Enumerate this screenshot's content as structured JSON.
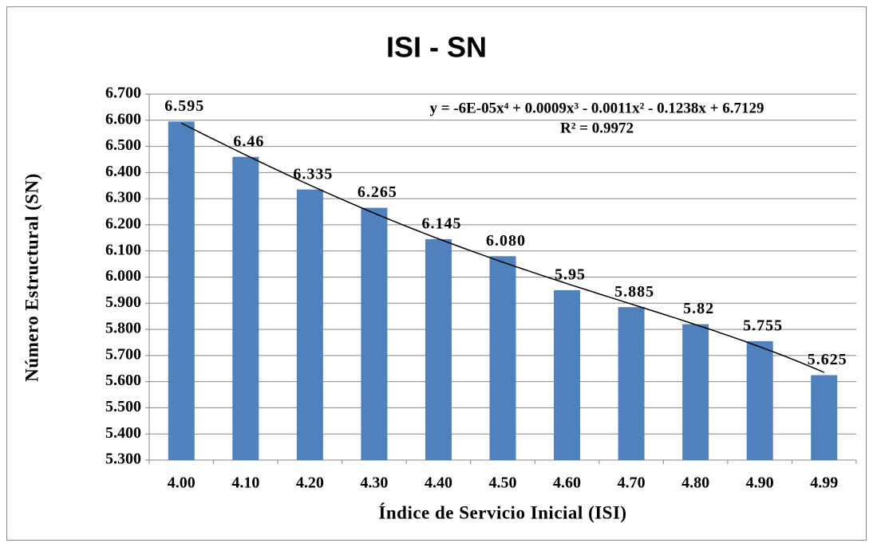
{
  "chart_data": {
    "type": "bar",
    "title": "ISI - SN",
    "x_label": "Índice de Servicio Inicial (ISI)",
    "y_label": "Número Estructural (SN)",
    "categories": [
      "4.00",
      "4.10",
      "4.20",
      "4.30",
      "4.40",
      "4.50",
      "4.60",
      "4.70",
      "4.80",
      "4.90",
      "4.99"
    ],
    "values": [
      6.595,
      6.46,
      6.335,
      6.265,
      6.145,
      6.08,
      5.95,
      5.885,
      5.82,
      5.755,
      5.625
    ],
    "value_labels": [
      "6.595",
      "6.46",
      "6.335",
      "6.265",
      "6.145",
      "6.080",
      "5.95",
      "5.885",
      "5.82",
      "5.755",
      "5.625"
    ],
    "color": "#4f81bd",
    "ylim": [
      5.3,
      6.7
    ],
    "yticks": [
      {
        "value": 5.3,
        "label": "5.300"
      },
      {
        "value": 5.4,
        "label": "5.400"
      },
      {
        "value": 5.5,
        "label": "5.500"
      },
      {
        "value": 5.6,
        "label": "5.600"
      },
      {
        "value": 5.7,
        "label": "5.700"
      },
      {
        "value": 5.8,
        "label": "5.800"
      },
      {
        "value": 5.9,
        "label": "5.900"
      },
      {
        "value": 6.0,
        "label": "6.000"
      },
      {
        "value": 6.1,
        "label": "6.100"
      },
      {
        "value": 6.2,
        "label": "6.200"
      },
      {
        "value": 6.3,
        "label": "6.300"
      },
      {
        "value": 6.4,
        "label": "6.400"
      },
      {
        "value": 6.5,
        "label": "6.500"
      },
      {
        "value": 6.6,
        "label": "6.600"
      },
      {
        "value": 6.7,
        "label": "6.700"
      }
    ],
    "grid": true,
    "trendline": {
      "type": "polynomial",
      "equation": "y = -6E-05x⁴ + 0.0009x³ - 0.0011x² - 0.1238x + 6.7129",
      "r_squared": "R² = 0.9972"
    }
  }
}
